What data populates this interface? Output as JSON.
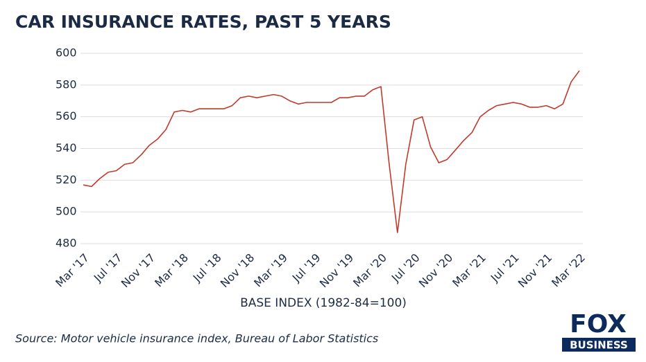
{
  "chart_data": {
    "type": "line",
    "title": "CAR INSURANCE RATES, PAST 5 YEARS",
    "xlabel": "BASE INDEX (1982-84=100)",
    "categories": [
      "Mar '17",
      null,
      null,
      null,
      "Jul '17",
      null,
      null,
      null,
      "Nov '17",
      null,
      null,
      null,
      "Mar '18",
      null,
      null,
      null,
      "Jul '18",
      null,
      null,
      null,
      "Nov '18",
      null,
      null,
      null,
      "Mar '19",
      null,
      null,
      null,
      "Jul '19",
      null,
      null,
      null,
      "Nov '19",
      null,
      null,
      null,
      "Mar '20",
      null,
      null,
      null,
      "Jul '20",
      null,
      null,
      null,
      "Nov '20",
      null,
      null,
      null,
      "Mar '21",
      null,
      null,
      null,
      "Jul '21",
      null,
      null,
      null,
      "Nov '21",
      null,
      null,
      null,
      "Mar '22"
    ],
    "series": [
      {
        "name": "Motor vehicle insurance index",
        "color": "#c0392b",
        "values": [
          517,
          516,
          521,
          525,
          526,
          530,
          531,
          536,
          542,
          546,
          552,
          563,
          564,
          563,
          565,
          565,
          565,
          565,
          567,
          572,
          573,
          572,
          573,
          574,
          573,
          570,
          568,
          569,
          569,
          569,
          569,
          572,
          572,
          573,
          573,
          577,
          579,
          530,
          487,
          530,
          558,
          560,
          541,
          531,
          533,
          539,
          545,
          550,
          560,
          564,
          567,
          568,
          569,
          568,
          566,
          566,
          567,
          565,
          568,
          582,
          589
        ]
      }
    ],
    "ylim": [
      480,
      600
    ],
    "yticks": [
      480,
      500,
      520,
      540,
      560,
      580,
      600
    ],
    "grid": true
  },
  "source": "Source: Motor vehicle insurance index, Bureau of Labor Statistics",
  "logo": {
    "top": "FOX",
    "bottom": "BUSINESS"
  }
}
